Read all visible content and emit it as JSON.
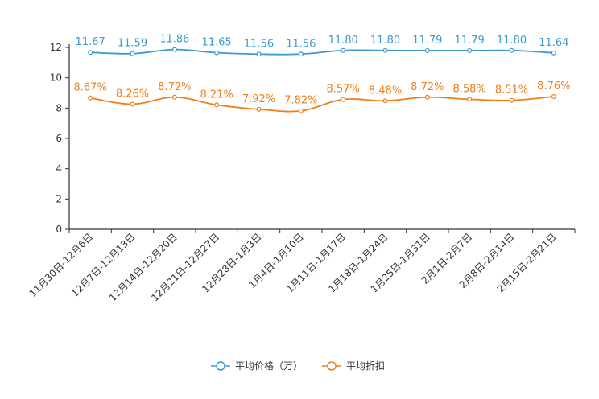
{
  "chart_data": {
    "type": "line",
    "categories": [
      "11月30日-12月6日",
      "12月7日-12月13日",
      "12月14日-12月20日",
      "12月21日-12月27日",
      "12月28日-1月3日",
      "1月4日-1月10日",
      "1月11日-1月17日",
      "1月18日-1月24日",
      "1月25日-1月31日",
      "2月1日-2月7日",
      "2月8日-2月14日",
      "2月15日-2月21日"
    ],
    "series": [
      {
        "name": "平均价格（万）",
        "color": "#3a9bcf",
        "values": [
          11.67,
          11.59,
          11.86,
          11.65,
          11.56,
          11.56,
          11.8,
          11.8,
          11.79,
          11.79,
          11.8,
          11.64
        ],
        "labels": [
          "11.67",
          "11.59",
          "11.86",
          "11.65",
          "11.56",
          "11.56",
          "11.80",
          "11.80",
          "11.79",
          "11.79",
          "11.80",
          "11.64"
        ]
      },
      {
        "name": "平均折扣",
        "color": "#f07f1a",
        "values": [
          8.67,
          8.26,
          8.72,
          8.21,
          7.92,
          7.82,
          8.57,
          8.48,
          8.72,
          8.58,
          8.51,
          8.76
        ],
        "labels": [
          "8.67%",
          "8.26%",
          "8.72%",
          "8.21%",
          "7.92%",
          "7.82%",
          "8.57%",
          "8.48%",
          "8.72%",
          "8.58%",
          "8.51%",
          "8.76%"
        ]
      }
    ],
    "yticks": [
      0,
      2,
      4,
      6,
      8,
      10,
      12
    ],
    "ylim": [
      0,
      12
    ],
    "title": "",
    "xlabel": "",
    "ylabel": "",
    "legend_position": "bottom-center"
  }
}
